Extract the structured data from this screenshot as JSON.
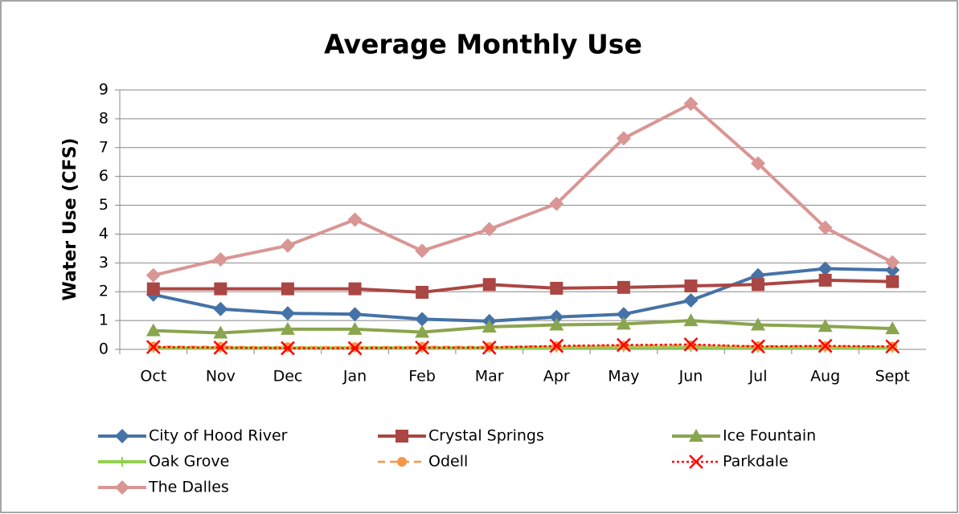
{
  "chart_data": {
    "type": "line",
    "title": "Average Monthly Use",
    "y_label": "Water Use (CFS)",
    "categories": [
      "Oct",
      "Nov",
      "Dec",
      "Jan",
      "Feb",
      "Mar",
      "Apr",
      "May",
      "Jun",
      "Jul",
      "Aug",
      "Sept"
    ],
    "ylim": [
      0,
      9
    ],
    "yticks": [
      0,
      1,
      2,
      3,
      4,
      5,
      6,
      7,
      8,
      9
    ],
    "grid": true,
    "legend": "bottom",
    "series": [
      {
        "name": "City of Hood River",
        "color": "#4572a7",
        "marker": "diamond",
        "dash": "solid",
        "values": [
          1.9,
          1.4,
          1.25,
          1.22,
          1.05,
          0.98,
          1.12,
          1.22,
          1.7,
          2.57,
          2.8,
          2.75
        ]
      },
      {
        "name": "Crystal Springs",
        "color": "#aa4643",
        "marker": "square",
        "dash": "solid",
        "values": [
          2.1,
          2.1,
          2.1,
          2.1,
          1.98,
          2.25,
          2.12,
          2.15,
          2.2,
          2.25,
          2.4,
          2.35
        ]
      },
      {
        "name": "Ice Fountain",
        "color": "#89a54e",
        "marker": "triangle",
        "dash": "solid",
        "values": [
          0.65,
          0.57,
          0.7,
          0.7,
          0.6,
          0.78,
          0.85,
          0.88,
          1.0,
          0.85,
          0.8,
          0.72
        ]
      },
      {
        "name": "Oak Grove",
        "color": "#92d050",
        "marker": "plus",
        "dash": "solid",
        "values": [
          0.05,
          0.05,
          0.05,
          0.05,
          0.05,
          0.05,
          0.06,
          0.07,
          0.07,
          0.06,
          0.06,
          0.05
        ]
      },
      {
        "name": "Odell",
        "color": "#f79646",
        "marker": "circle",
        "dash": "dash",
        "values": [
          0.1,
          0.09,
          0.08,
          0.08,
          0.09,
          0.09,
          0.11,
          0.13,
          0.14,
          0.11,
          0.11,
          0.1
        ]
      },
      {
        "name": "Parkdale",
        "color": "#ff0000",
        "marker": "x",
        "dash": "dot",
        "values": [
          0.08,
          0.06,
          0.04,
          0.04,
          0.06,
          0.06,
          0.12,
          0.15,
          0.17,
          0.1,
          0.12,
          0.1
        ]
      },
      {
        "name": "The Dalles",
        "color": "#d99694",
        "marker": "diamond",
        "dash": "solid",
        "values": [
          2.57,
          3.12,
          3.6,
          4.5,
          3.42,
          4.17,
          5.05,
          7.32,
          8.52,
          6.45,
          4.22,
          3.02
        ]
      }
    ]
  }
}
